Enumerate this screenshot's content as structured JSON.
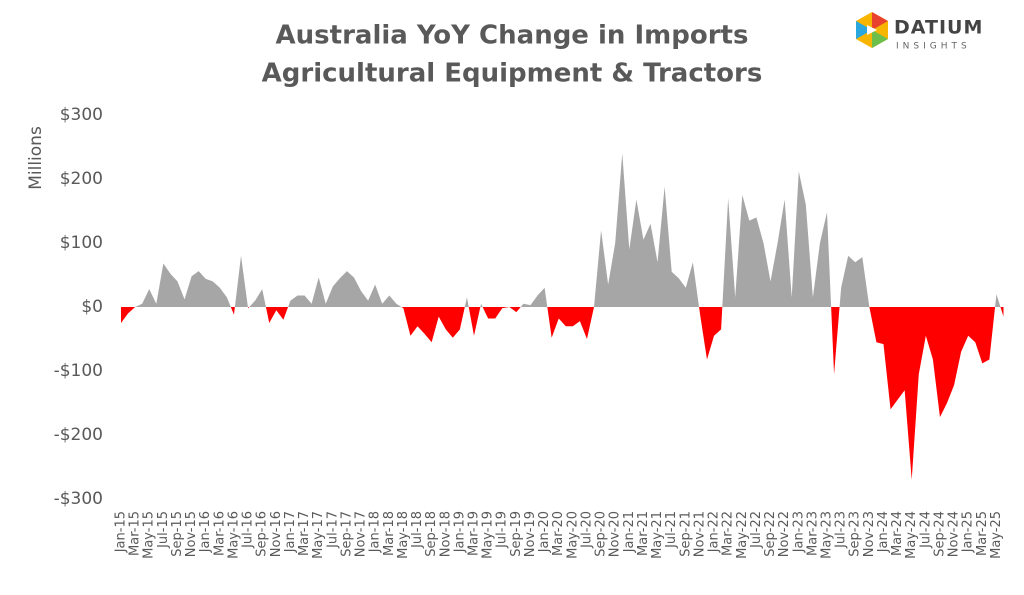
{
  "chart_data": {
    "type": "area",
    "title": "Australia YoY Change in Imports",
    "subtitle": "Agricultural Equipment & Tractors",
    "y_label": "Millions",
    "categories": [
      "Jan-15",
      null,
      "Mar-15",
      null,
      "May-15",
      null,
      "Jul-15",
      null,
      "Sep-15",
      null,
      "Nov-15",
      null,
      "Jan-16",
      null,
      "Mar-16",
      null,
      "May-16",
      null,
      "Jul-16",
      null,
      "Sep-16",
      null,
      "Nov-16",
      null,
      "Jan-17",
      null,
      "Mar-17",
      null,
      "May-17",
      null,
      "Jul-17",
      null,
      "Sep-17",
      null,
      "Nov-17",
      null,
      "Jan-18",
      null,
      "Mar-18",
      null,
      "May-18",
      null,
      "Jul-18",
      null,
      "Sep-18",
      null,
      "Nov-18",
      null,
      "Jan-19",
      null,
      "Mar-19",
      null,
      "May-19",
      null,
      "Jul-19",
      null,
      "Sep-19",
      null,
      "Nov-19",
      null,
      "Jan-20",
      null,
      "Mar-20",
      null,
      "May-20",
      null,
      "Jul-20",
      null,
      "Sep-20",
      null,
      "Nov-20",
      null,
      "Jan-21",
      null,
      "Mar-21",
      null,
      "May-21",
      null,
      "Jul-21",
      null,
      "Sep-21",
      null,
      "Nov-21",
      null,
      "Jan-22",
      null,
      "Mar-22",
      null,
      "May-22",
      null,
      "Jul-22",
      null,
      "Sep-22",
      null,
      "Nov-22",
      null,
      "Jan-23",
      null,
      "Mar-23",
      null,
      "May-23",
      null,
      "Jul-23",
      null,
      "Sep-23",
      null,
      "Nov-23",
      null,
      "Jan-24",
      null,
      "Mar-24",
      null,
      "May-24",
      null,
      "Jul-24",
      null,
      "Sep-24",
      null,
      "Nov-24",
      null,
      "Jan-25",
      null,
      "Mar-25",
      null,
      "May-25",
      null
    ],
    "series": [
      {
        "color": "#a6a6a6",
        "negative_color": "#ff0000",
        "values": [
          -25,
          -10,
          0,
          5,
          28,
          5,
          68,
          52,
          40,
          12,
          48,
          56,
          44,
          40,
          30,
          15,
          -12,
          80,
          -2,
          10,
          28,
          -25,
          -5,
          -20,
          10,
          18,
          18,
          5,
          46,
          5,
          32,
          45,
          56,
          46,
          25,
          10,
          35,
          5,
          18,
          5,
          -2,
          -45,
          -30,
          -42,
          -55,
          -15,
          -35,
          -48,
          -35,
          15,
          -45,
          5,
          -18,
          -18,
          -2,
          0,
          -8,
          5,
          3,
          18,
          30,
          -48,
          -18,
          -30,
          -30,
          -22,
          -50,
          0,
          120,
          35,
          100,
          240,
          90,
          168,
          105,
          130,
          70,
          188,
          55,
          45,
          30,
          70,
          -10,
          -82,
          -45,
          -35,
          170,
          15,
          175,
          135,
          140,
          100,
          40,
          100,
          168,
          15,
          212,
          160,
          15,
          100,
          148,
          -105,
          30,
          80,
          70,
          78,
          0,
          -55,
          -58,
          -160,
          -145,
          -130,
          -270,
          -105,
          -45,
          -82,
          -172,
          -150,
          -122,
          -70,
          -45,
          -55,
          -88,
          -82,
          20,
          -15
        ]
      }
    ],
    "ylim": [
      -300,
      300
    ],
    "yticks": [
      {
        "value": 300,
        "label": "$300"
      },
      {
        "value": 200,
        "label": "$200"
      },
      {
        "value": 100,
        "label": "$100"
      },
      {
        "value": 0,
        "label": "$0"
      },
      {
        "value": -100,
        "label": "-$100"
      },
      {
        "value": -200,
        "label": "-$200"
      },
      {
        "value": -300,
        "label": "-$300"
      }
    ],
    "grid": false
  },
  "logo": {
    "name": "DATIUM",
    "tagline": "INSIGHTS"
  }
}
